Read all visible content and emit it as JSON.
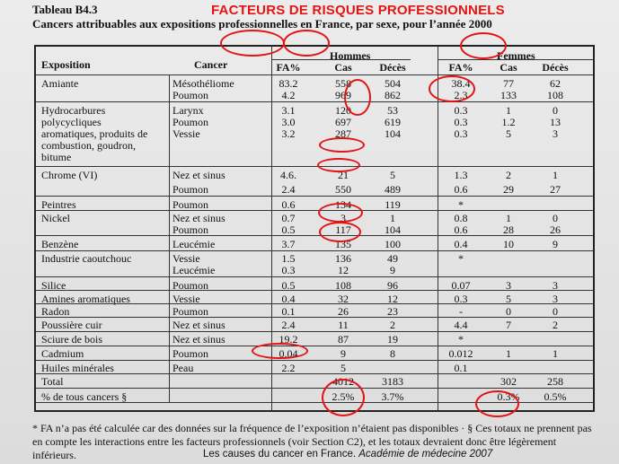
{
  "header": {
    "table_number": "Tableau B4.3",
    "slide_title": "FACTEURS DE RISQUES PROFESSIONNELS",
    "subtitle": "Cancers attribuables aux expositions professionnelles en France, par sexe, pour l’année 2000"
  },
  "table": {
    "col_exposition": "Exposition",
    "col_cancer": "Cancer",
    "group_hommes": "Hommes",
    "group_femmes": "Femmes",
    "sub_fa": "FA%",
    "sub_cas": "Cas",
    "sub_deces": "Décès",
    "rows": [
      {
        "exposition": "Amiante",
        "cancer": "Mésothéliome",
        "h_fa": "83.2",
        "h_cas": "558",
        "h_deces": "504",
        "f_fa": "38.4",
        "f_cas": "77",
        "f_deces": "62"
      },
      {
        "exposition": "",
        "cancer": "Poumon",
        "h_fa": "4.2",
        "h_cas": "969",
        "h_deces": "862",
        "f_fa": "2.3",
        "f_cas": "133",
        "f_deces": "108"
      },
      {
        "exposition": "Hydrocarbures",
        "cancer": "Larynx",
        "h_fa": "3.1",
        "h_cas": "120",
        "h_deces": "53",
        "f_fa": "0.3",
        "f_cas": "1",
        "f_deces": "0"
      },
      {
        "exposition": "polycycliques",
        "cancer": "Poumon",
        "h_fa": "3.0",
        "h_cas": "697",
        "h_deces": "619",
        "f_fa": "0.3",
        "f_cas": "1.2",
        "f_deces": "13"
      },
      {
        "exposition": "aromatiques, produits de",
        "cancer": "Vessie",
        "h_fa": "3.2",
        "h_cas": "287",
        "h_deces": "104",
        "f_fa": "0.3",
        "f_cas": "5",
        "f_deces": "3"
      },
      {
        "exposition": "combustion, goudron,",
        "cancer": "",
        "h_fa": "",
        "h_cas": "",
        "h_deces": "",
        "f_fa": "",
        "f_cas": "",
        "f_deces": ""
      },
      {
        "exposition": "bitume",
        "cancer": "",
        "h_fa": "",
        "h_cas": "",
        "h_deces": "",
        "f_fa": "",
        "f_cas": "",
        "f_deces": ""
      },
      {
        "exposition": "Chrome (VI)",
        "cancer": "Nez et sinus",
        "h_fa": "4.6.",
        "h_cas": "21",
        "h_deces": "5",
        "f_fa": "1.3",
        "f_cas": "2",
        "f_deces": "1"
      },
      {
        "exposition": "",
        "cancer": "Poumon",
        "h_fa": "2.4",
        "h_cas": "550",
        "h_deces": "489",
        "f_fa": "0.6",
        "f_cas": "29",
        "f_deces": "27"
      },
      {
        "exposition": "Peintres",
        "cancer": "Poumon",
        "h_fa": "0.6",
        "h_cas": "134",
        "h_deces": "119",
        "f_fa": "*",
        "f_cas": "",
        "f_deces": ""
      },
      {
        "exposition": "Nickel",
        "cancer": "Nez et sinus",
        "h_fa": "0.7",
        "h_cas": "3",
        "h_deces": "1",
        "f_fa": "0.8",
        "f_cas": "1",
        "f_deces": "0"
      },
      {
        "exposition": "",
        "cancer": "Poumon",
        "h_fa": "0.5",
        "h_cas": "117",
        "h_deces": "104",
        "f_fa": "0.6",
        "f_cas": "28",
        "f_deces": "26"
      },
      {
        "exposition": "Benzène",
        "cancer": "Leucémie",
        "h_fa": "3.7",
        "h_cas": "135",
        "h_deces": "100",
        "f_fa": "0.4",
        "f_cas": "10",
        "f_deces": "9"
      },
      {
        "exposition": "Industrie caoutchouc",
        "cancer": "Vessie",
        "h_fa": "1.5",
        "h_cas": "136",
        "h_deces": "49",
        "f_fa": "*",
        "f_cas": "",
        "f_deces": ""
      },
      {
        "exposition": "",
        "cancer": "Leucémie",
        "h_fa": "0.3",
        "h_cas": "12",
        "h_deces": "9",
        "f_fa": "",
        "f_cas": "",
        "f_deces": ""
      },
      {
        "exposition": "Silice",
        "cancer": "Poumon",
        "h_fa": "0.5",
        "h_cas": "108",
        "h_deces": "96",
        "f_fa": "0.07",
        "f_cas": "3",
        "f_deces": "3"
      },
      {
        "exposition": "Amines aromatiques",
        "cancer": "Vessie",
        "h_fa": "0.4",
        "h_cas": "32",
        "h_deces": "12",
        "f_fa": "0.3",
        "f_cas": "5",
        "f_deces": "3"
      },
      {
        "exposition": "Radon",
        "cancer": "Poumon",
        "h_fa": "0.1",
        "h_cas": "26",
        "h_deces": "23",
        "f_fa": "-",
        "f_cas": "0",
        "f_deces": "0"
      },
      {
        "exposition": "Poussière cuir",
        "cancer": "Nez et sinus",
        "h_fa": "2.4",
        "h_cas": "11",
        "h_deces": "2",
        "f_fa": "4.4",
        "f_cas": "7",
        "f_deces": "2"
      },
      {
        "exposition": "Sciure de bois",
        "cancer": "Nez et sinus",
        "h_fa": "19.2",
        "h_cas": "87",
        "h_deces": "19",
        "f_fa": "*",
        "f_cas": "",
        "f_deces": ""
      },
      {
        "exposition": "Cadmium",
        "cancer": "Poumon",
        "h_fa": "0.04",
        "h_cas": "9",
        "h_deces": "8",
        "f_fa": "0.012",
        "f_cas": "1",
        "f_deces": "1"
      },
      {
        "exposition": "Huiles minérales",
        "cancer": "Peau",
        "h_fa": "2.2",
        "h_cas": "5",
        "h_deces": "",
        "f_fa": "0.1",
        "f_cas": "",
        "f_deces": ""
      },
      {
        "exposition": "Total",
        "cancer": "",
        "h_fa": "",
        "h_cas": "4012",
        "h_deces": "3183",
        "f_fa": "",
        "f_cas": "302",
        "f_deces": "258"
      },
      {
        "exposition": "% de tous cancers §",
        "cancer": "",
        "h_fa": "",
        "h_cas": "2.5%",
        "h_deces": "3.7%",
        "f_fa": "",
        "f_cas": "0.3%",
        "f_deces": "0.5%"
      }
    ]
  },
  "footnote": "* FA n’a pas été calculée car des données sur la fréquence de l’exposition n’étaient pas disponibles · § Ces totaux ne prennent pas en compte les interactions entre les facteurs professionnels (voir Section C2), et les totaux devraient donc être légèrement inférieurs.",
  "source": {
    "text": "Les causes du cancer en France.",
    "italic": "Académie de médecine 2007"
  },
  "accent_color": "#e41414"
}
